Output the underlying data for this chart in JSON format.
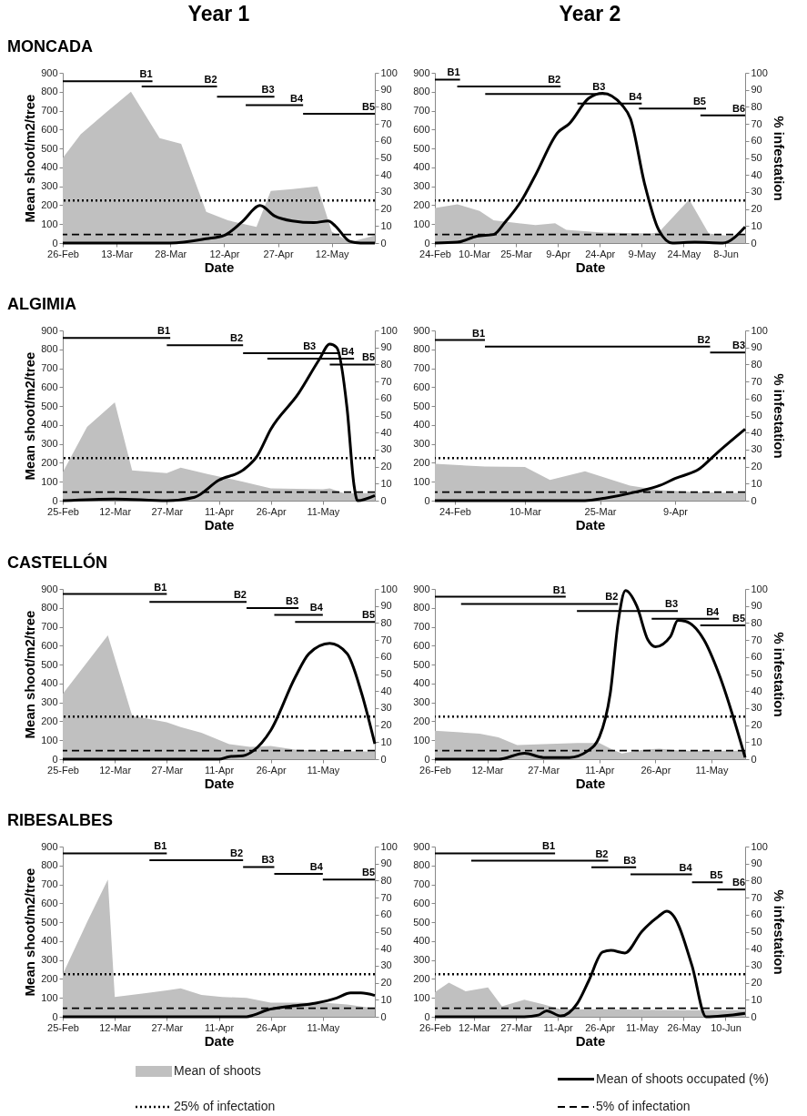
{
  "chart_data": [
    {
      "type": "area",
      "title": "MONCADA",
      "xlabel": "Date",
      "ylabel": "Mean shoot/m2/tree",
      "xlim": [
        "--02-26",
        "--05-24"
      ],
      "xticks": [
        {
          "value": "--02-26",
          "label": "26-Feb"
        },
        {
          "value": "--03-13",
          "label": "13-Mar"
        },
        {
          "value": "--03-28",
          "label": "28-Mar"
        },
        {
          "value": "--04-12",
          "label": "12-Apr"
        },
        {
          "value": "--04-27",
          "label": "27-Apr"
        },
        {
          "value": "--05-12",
          "label": "12-May"
        }
      ],
      "ylim": [
        0,
        900
      ],
      "yticks": [
        0,
        100,
        200,
        300,
        400,
        500,
        600,
        700,
        800,
        900
      ],
      "y2lim": [
        0,
        100
      ],
      "y2ticks": [
        0,
        10,
        20,
        30,
        40,
        50,
        60,
        70,
        80,
        90,
        100
      ],
      "series": [
        {
          "type": "area",
          "color": "#c0c0c0",
          "x": [
            "--02-26",
            "--03-03",
            "--03-10",
            "--03-17",
            "--03-25",
            "--03-31",
            "--04-07",
            "--04-13",
            "--04-21",
            "--04-25",
            "--05-01",
            "--05-08",
            "--05-12",
            "--05-17",
            "--05-24"
          ],
          "values": [
            450,
            575,
            690,
            800,
            555,
            525,
            165,
            120,
            85,
            275,
            285,
            300,
            60,
            5,
            40
          ]
        },
        {
          "type": "line",
          "axis": "y2",
          "color": "#000000",
          "x": [
            "--02-26",
            "--03-13",
            "--03-28",
            "--04-07",
            "--04-12",
            "--04-17",
            "--04-22",
            "--04-26",
            "--05-01",
            "--05-07",
            "--05-11",
            "--05-13",
            "--05-17",
            "--05-20",
            "--05-24"
          ],
          "values": [
            0,
            0,
            0,
            2.5,
            4.5,
            12.5,
            22,
            16,
            13,
            12,
            13,
            10,
            1,
            0,
            0
          ]
        },
        {
          "type": "line",
          "color": "#000000",
          "x": [
            "--02-26",
            "--03-23"
          ],
          "values": [
            855,
            855
          ]
        },
        {
          "type": "line",
          "color": "#000000",
          "x": [
            "--03-20",
            "--04-10"
          ],
          "values": [
            828,
            828
          ]
        },
        {
          "type": "line",
          "color": "#000000",
          "x": [
            "--04-10",
            "--04-26"
          ],
          "values": [
            774,
            774
          ]
        },
        {
          "type": "line",
          "color": "#000000",
          "x": [
            "--04-18",
            "--05-04"
          ],
          "values": [
            729,
            729
          ]
        },
        {
          "type": "line",
          "color": "#000000",
          "x": [
            "--05-04",
            "--05-24"
          ],
          "values": [
            684,
            684
          ]
        }
      ],
      "ref_lines": [
        {
          "axis": "y2",
          "value": 25,
          "line_style": "dotted",
          "color": "#000000"
        },
        {
          "axis": "y2",
          "value": 5,
          "line_style": "dashed",
          "color": "#000000"
        }
      ],
      "annotations": [
        "Year 1",
        {
          "text": "B1",
          "x": "--03-23",
          "y": 855
        },
        {
          "text": "B2",
          "x": "--04-10",
          "y": 828
        },
        {
          "text": "B3",
          "x": "--04-26",
          "y": 774
        },
        {
          "text": "B4",
          "x": "--05-04",
          "y": 729
        },
        {
          "text": "B5",
          "x": "--05-24",
          "y": 684
        }
      ]
    },
    {
      "type": "area",
      "xlabel": "Date",
      "y2label": "% infestation",
      "xlim": [
        "--02-24",
        "--06-15"
      ],
      "xticks": [
        {
          "value": "--02-24",
          "label": "24-Feb"
        },
        {
          "value": "--03-10",
          "label": "10-Mar"
        },
        {
          "value": "--03-25",
          "label": "25-Mar"
        },
        {
          "value": "--04-09",
          "label": "9-Apr"
        },
        {
          "value": "--04-24",
          "label": "24-Apr"
        },
        {
          "value": "--05-09",
          "label": "9-May"
        },
        {
          "value": "--05-24",
          "label": "24-May"
        },
        {
          "value": "--06-08",
          "label": "8-Jun"
        }
      ],
      "ylim": [
        0,
        900
      ],
      "yticks": [
        0,
        100,
        200,
        300,
        400,
        500,
        600,
        700,
        800,
        900
      ],
      "y2lim": [
        0,
        100
      ],
      "y2ticks": [
        0,
        10,
        20,
        30,
        40,
        50,
        60,
        70,
        80,
        90,
        100
      ],
      "series": [
        {
          "type": "area",
          "color": "#c0c0c0",
          "x": [
            "--02-24",
            "--03-04",
            "--03-12",
            "--03-17",
            "--03-26",
            "--04-01",
            "--04-08",
            "--04-12",
            "--04-25",
            "--05-12",
            "--05-15",
            "--05-26",
            "--06-02",
            "--06-08",
            "--06-15"
          ],
          "values": [
            185,
            205,
            170,
            120,
            105,
            95,
            105,
            70,
            55,
            50,
            55,
            230,
            50,
            40,
            40
          ]
        },
        {
          "type": "line",
          "axis": "y2",
          "color": "#000000",
          "x": [
            "--02-24",
            "--03-04",
            "--03-11",
            "--03-17",
            "--03-21",
            "--03-27",
            "--04-01",
            "--04-09",
            "--04-13",
            "--04-20",
            "--04-25",
            "--05-02",
            "--05-05",
            "--05-10",
            "--05-15",
            "--05-20",
            "--05-28",
            "--06-07",
            "--06-15"
          ],
          "values": [
            0,
            0.5,
            4,
            5,
            12,
            25,
            40,
            65,
            70,
            85,
            88,
            81,
            73,
            35,
            8,
            0,
            0.5,
            0,
            9.5
          ]
        },
        {
          "type": "line",
          "color": "#000000",
          "x": [
            "--02-24",
            "--03-05"
          ],
          "values": [
            864,
            864
          ]
        },
        {
          "type": "line",
          "color": "#000000",
          "x": [
            "--03-04",
            "--04-10"
          ],
          "values": [
            828,
            828
          ]
        },
        {
          "type": "line",
          "color": "#000000",
          "x": [
            "--03-14",
            "--04-26"
          ],
          "values": [
            788,
            788
          ]
        },
        {
          "type": "line",
          "color": "#000000",
          "x": [
            "--04-16",
            "--05-09"
          ],
          "values": [
            738,
            738
          ]
        },
        {
          "type": "line",
          "color": "#000000",
          "x": [
            "--05-08",
            "--06-01"
          ],
          "values": [
            711,
            711
          ]
        },
        {
          "type": "line",
          "color": "#000000",
          "x": [
            "--05-30",
            "--06-15"
          ],
          "values": [
            675,
            675
          ]
        }
      ],
      "ref_lines": [
        {
          "axis": "y2",
          "value": 25,
          "line_style": "dotted",
          "color": "#000000"
        },
        {
          "axis": "y2",
          "value": 5,
          "line_style": "dashed",
          "color": "#000000"
        }
      ],
      "annotations": [
        "Year 2",
        {
          "text": "B1",
          "x": "--03-05",
          "y": 864
        },
        {
          "text": "B2",
          "x": "--04-10",
          "y": 828
        },
        {
          "text": "B3",
          "x": "--04-26",
          "y": 788
        },
        {
          "text": "B4",
          "x": "--05-09",
          "y": 738
        },
        {
          "text": "B5",
          "x": "--06-01",
          "y": 711
        },
        {
          "text": "B6",
          "x": "--06-15",
          "y": 675
        }
      ]
    },
    {
      "type": "area",
      "title": "ALGIMIA",
      "xlabel": "Date",
      "ylabel": "Mean shoot/m2/tree",
      "xlim": [
        "--02-25",
        "--05-26"
      ],
      "xticks": [
        {
          "value": "--02-25",
          "label": "25-Feb"
        },
        {
          "value": "--03-12",
          "label": "12-Mar"
        },
        {
          "value": "--03-27",
          "label": "27-Mar"
        },
        {
          "value": "--04-11",
          "label": "11-Apr"
        },
        {
          "value": "--04-26",
          "label": "26-Apr"
        },
        {
          "value": "--05-11",
          "label": "11-May"
        }
      ],
      "ylim": [
        0,
        900
      ],
      "yticks": [
        0,
        100,
        200,
        300,
        400,
        500,
        600,
        700,
        800,
        900
      ],
      "y2lim": [
        0,
        100
      ],
      "y2ticks": [
        0,
        10,
        20,
        30,
        40,
        50,
        60,
        70,
        80,
        90,
        100
      ],
      "series": [
        {
          "type": "area",
          "color": "#c0c0c0",
          "x": [
            "--02-25",
            "--03-04",
            "--03-12",
            "--03-17",
            "--03-27",
            "--03-31",
            "--04-08",
            "--04-18",
            "--04-26",
            "--05-11",
            "--05-13",
            "--05-17",
            "--05-26"
          ],
          "values": [
            150,
            390,
            520,
            160,
            145,
            175,
            140,
            100,
            65,
            60,
            65,
            40,
            40
          ]
        },
        {
          "type": "line",
          "axis": "y2",
          "color": "#000000",
          "x": [
            "--02-25",
            "--03-12",
            "--03-27",
            "--04-04",
            "--04-11",
            "--04-18",
            "--04-22",
            "--04-26",
            "--05-04",
            "--05-10",
            "--05-13",
            "--05-15",
            "--05-18",
            "--05-20",
            "--05-21",
            "--05-26"
          ],
          "values": [
            0,
            1,
            0,
            2,
            12,
            18,
            26,
            42,
            63,
            83,
            92,
            90,
            54,
            9,
            0,
            3
          ]
        },
        {
          "type": "line",
          "color": "#000000",
          "x": [
            "--02-25",
            "--03-28"
          ],
          "values": [
            860,
            860
          ]
        },
        {
          "type": "line",
          "color": "#000000",
          "x": [
            "--03-27",
            "--04-18"
          ],
          "values": [
            822,
            822
          ]
        },
        {
          "type": "line",
          "color": "#000000",
          "x": [
            "--04-18",
            "--05-16"
          ],
          "values": [
            780,
            780
          ]
        },
        {
          "type": "line",
          "color": "#000000",
          "x": [
            "--04-25",
            "--05-20"
          ],
          "values": [
            751,
            751
          ]
        },
        {
          "type": "line",
          "color": "#000000",
          "x": [
            "--05-13",
            "--05-26"
          ],
          "values": [
            720,
            720
          ]
        }
      ],
      "ref_lines": [
        {
          "axis": "y2",
          "value": 25,
          "line_style": "dotted",
          "color": "#000000"
        },
        {
          "axis": "y2",
          "value": 5,
          "line_style": "dashed",
          "color": "#000000"
        }
      ],
      "annotations": [
        {
          "text": "B1",
          "x": "--03-28",
          "y": 860
        },
        {
          "text": "B2",
          "x": "--04-18",
          "y": 822
        },
        {
          "text": "B3",
          "x": "--05-09",
          "y": 780
        },
        {
          "text": "B4",
          "x": "--05-20",
          "y": 751
        },
        {
          "text": "B5",
          "x": "--05-26",
          "y": 720
        }
      ]
    },
    {
      "type": "area",
      "xlabel": "Date",
      "y2label": "% infestation",
      "xlim": [
        "--02-20",
        "--04-23"
      ],
      "xticks": [
        {
          "value": "--02-24",
          "label": "24-Feb"
        },
        {
          "value": "--03-10",
          "label": "10-Mar"
        },
        {
          "value": "--03-25",
          "label": "25-Mar"
        },
        {
          "value": "--04-09",
          "label": "9-Apr"
        }
      ],
      "ylim": [
        0,
        900
      ],
      "yticks": [
        0,
        100,
        200,
        300,
        400,
        500,
        600,
        700,
        800,
        900
      ],
      "y2lim": [
        0,
        100
      ],
      "y2ticks": [
        0,
        10,
        20,
        30,
        40,
        50,
        60,
        70,
        80,
        90,
        100
      ],
      "series": [
        {
          "type": "area",
          "color": "#c0c0c0",
          "x": [
            "--02-20",
            "--03-02",
            "--03-10",
            "--03-15",
            "--03-22",
            "--03-31",
            "--04-06",
            "--04-14",
            "--04-23"
          ],
          "values": [
            195,
            180,
            178,
            110,
            155,
            80,
            55,
            45,
            40
          ]
        },
        {
          "type": "line",
          "axis": "y2",
          "color": "#000000",
          "x": [
            "--02-20",
            "--03-10",
            "--03-22",
            "--03-26",
            "--04-01",
            "--04-06",
            "--04-09",
            "--04-14",
            "--04-17",
            "--04-23"
          ],
          "values": [
            0,
            0,
            0,
            1.5,
            5,
            9,
            13,
            19,
            27,
            42
          ]
        },
        {
          "type": "line",
          "color": "#000000",
          "x": [
            "--02-20",
            "--03-02"
          ],
          "values": [
            849,
            849
          ]
        },
        {
          "type": "line",
          "color": "#000000",
          "x": [
            "--03-02",
            "--04-16"
          ],
          "values": [
            814,
            814
          ]
        },
        {
          "type": "line",
          "color": "#000000",
          "x": [
            "--04-16",
            "--04-23"
          ],
          "values": [
            783,
            783
          ]
        }
      ],
      "ref_lines": [
        {
          "axis": "y2",
          "value": 25,
          "line_style": "dotted",
          "color": "#000000"
        },
        {
          "axis": "y2",
          "value": 5,
          "line_style": "dashed",
          "color": "#000000"
        }
      ],
      "annotations": [
        {
          "text": "B1",
          "x": "--03-02",
          "y": 849
        },
        {
          "text": "B2",
          "x": "--04-16",
          "y": 814
        },
        {
          "text": "B3",
          "x": "--04-23",
          "y": 783
        }
      ]
    },
    {
      "type": "area",
      "title": "CASTELLÓN",
      "xlabel": "Date",
      "ylabel": "Mean shoot/m2/tree",
      "xlim": [
        "--02-25",
        "--05-26"
      ],
      "xticks": [
        {
          "value": "--02-25",
          "label": "25-Feb"
        },
        {
          "value": "--03-12",
          "label": "12-Mar"
        },
        {
          "value": "--03-27",
          "label": "27-Mar"
        },
        {
          "value": "--04-11",
          "label": "11-Apr"
        },
        {
          "value": "--04-26",
          "label": "26-Apr"
        },
        {
          "value": "--05-11",
          "label": "11-May"
        }
      ],
      "ylim": [
        0,
        900
      ],
      "yticks": [
        0,
        100,
        200,
        300,
        400,
        500,
        600,
        700,
        800,
        900
      ],
      "y2lim": [
        0,
        100
      ],
      "y2ticks": [
        0,
        10,
        20,
        30,
        40,
        50,
        60,
        70,
        80,
        90,
        100
      ],
      "series": [
        {
          "type": "area",
          "color": "#c0c0c0",
          "x": [
            "--02-25",
            "--03-10",
            "--03-17",
            "--03-27",
            "--03-31",
            "--04-06",
            "--04-14",
            "--04-20",
            "--04-26",
            "--05-03",
            "--05-11",
            "--05-26"
          ],
          "values": [
            345,
            655,
            230,
            195,
            170,
            140,
            80,
            65,
            70,
            50,
            45,
            40
          ]
        },
        {
          "type": "line",
          "axis": "y2",
          "color": "#000000",
          "x": [
            "--02-25",
            "--03-27",
            "--04-11",
            "--04-14",
            "--04-18",
            "--04-21",
            "--04-26",
            "--05-03",
            "--05-07",
            "--05-13",
            "--05-18",
            "--05-22",
            "--05-26"
          ],
          "values": [
            0,
            0,
            0,
            1.5,
            2,
            5,
            17,
            48,
            62,
            68,
            62,
            40,
            9
          ]
        },
        {
          "type": "line",
          "color": "#000000",
          "x": [
            "--02-25",
            "--03-27"
          ],
          "values": [
            873,
            873
          ]
        },
        {
          "type": "line",
          "color": "#000000",
          "x": [
            "--03-22",
            "--04-19"
          ],
          "values": [
            832,
            832
          ]
        },
        {
          "type": "line",
          "color": "#000000",
          "x": [
            "--04-19",
            "--05-04"
          ],
          "values": [
            799,
            799
          ]
        },
        {
          "type": "line",
          "color": "#000000",
          "x": [
            "--04-27",
            "--05-11"
          ],
          "values": [
            763,
            763
          ]
        },
        {
          "type": "line",
          "color": "#000000",
          "x": [
            "--05-03",
            "--05-26"
          ],
          "values": [
            725,
            725
          ]
        }
      ],
      "ref_lines": [
        {
          "axis": "y2",
          "value": 25,
          "line_style": "dotted",
          "color": "#000000"
        },
        {
          "axis": "y2",
          "value": 5,
          "line_style": "dashed",
          "color": "#000000"
        }
      ],
      "annotations": [
        {
          "text": "B1",
          "x": "--03-27",
          "y": 873
        },
        {
          "text": "B2",
          "x": "--04-19",
          "y": 832
        },
        {
          "text": "B3",
          "x": "--05-04",
          "y": 799
        },
        {
          "text": "B4",
          "x": "--05-11",
          "y": 763
        },
        {
          "text": "B5",
          "x": "--05-26",
          "y": 725
        }
      ]
    },
    {
      "type": "area",
      "xlabel": "Date",
      "y2label": "% infestation",
      "xlim": [
        "--02-26",
        "--05-20"
      ],
      "xticks": [
        {
          "value": "--02-26",
          "label": "26-Feb"
        },
        {
          "value": "--03-12",
          "label": "12-Mar"
        },
        {
          "value": "--03-27",
          "label": "27-Mar"
        },
        {
          "value": "--04-11",
          "label": "11-Apr"
        },
        {
          "value": "--04-26",
          "label": "26-Apr"
        },
        {
          "value": "--05-11",
          "label": "11-May"
        }
      ],
      "ylim": [
        0,
        900
      ],
      "yticks": [
        0,
        100,
        200,
        300,
        400,
        500,
        600,
        700,
        800,
        900
      ],
      "y2lim": [
        0,
        100
      ],
      "y2ticks": [
        0,
        10,
        20,
        30,
        40,
        50,
        60,
        70,
        80,
        90,
        100
      ],
      "series": [
        {
          "type": "area",
          "color": "#c0c0c0",
          "x": [
            "--02-26",
            "--03-10",
            "--03-15",
            "--03-20",
            "--03-27",
            "--04-05",
            "--04-11",
            "--04-14",
            "--04-17",
            "--04-23",
            "--04-27",
            "--05-03",
            "--05-20"
          ],
          "values": [
            150,
            135,
            115,
            75,
            80,
            85,
            85,
            55,
            30,
            50,
            55,
            45,
            45
          ]
        },
        {
          "type": "line",
          "axis": "y2",
          "color": "#000000",
          "x": [
            "--02-26",
            "--03-15",
            "--03-22",
            "--03-27",
            "--04-03",
            "--04-08",
            "--04-11",
            "--04-14",
            "--04-16",
            "--04-18",
            "--04-21",
            "--04-24",
            "--04-26",
            "--04-30",
            "--05-02",
            "--05-04",
            "--05-09",
            "--05-13",
            "--05-20"
          ],
          "values": [
            0,
            0,
            3.5,
            1,
            1,
            5,
            13,
            40,
            80,
            99,
            90,
            70,
            66,
            72,
            81.5,
            81,
            70,
            50,
            1
          ]
        },
        {
          "type": "line",
          "color": "#000000",
          "x": [
            "--02-26",
            "--04-02"
          ],
          "values": [
            859,
            859
          ]
        },
        {
          "type": "line",
          "color": "#000000",
          "x": [
            "--03-05",
            "--04-16"
          ],
          "values": [
            821,
            821
          ]
        },
        {
          "type": "line",
          "color": "#000000",
          "x": [
            "--04-05",
            "--05-02"
          ],
          "values": [
            783,
            783
          ]
        },
        {
          "type": "line",
          "color": "#000000",
          "x": [
            "--04-25",
            "--05-13"
          ],
          "values": [
            742,
            742
          ]
        },
        {
          "type": "line",
          "color": "#000000",
          "x": [
            "--05-08",
            "--05-20"
          ],
          "values": [
            708,
            708
          ]
        }
      ],
      "ref_lines": [
        {
          "axis": "y2",
          "value": 25,
          "line_style": "dotted",
          "color": "#000000"
        },
        {
          "axis": "y2",
          "value": 5,
          "line_style": "dashed",
          "color": "#000000"
        }
      ],
      "annotations": [
        {
          "text": "B1",
          "x": "--04-02",
          "y": 859
        },
        {
          "text": "B2",
          "x": "--04-16",
          "y": 821
        },
        {
          "text": "B3",
          "x": "--05-02",
          "y": 783
        },
        {
          "text": "B4",
          "x": "--05-13",
          "y": 742
        },
        {
          "text": "B5",
          "x": "--05-20",
          "y": 708
        }
      ]
    },
    {
      "type": "area",
      "title": "RIBESALBES",
      "xlabel": "Date",
      "ylabel": "Mean shoot/m2/tree",
      "xlim": [
        "--02-25",
        "--05-26"
      ],
      "xticks": [
        {
          "value": "--02-25",
          "label": "25-Feb"
        },
        {
          "value": "--03-12",
          "label": "12-Mar"
        },
        {
          "value": "--03-27",
          "label": "27-Mar"
        },
        {
          "value": "--04-11",
          "label": "11-Apr"
        },
        {
          "value": "--04-26",
          "label": "26-Apr"
        },
        {
          "value": "--05-11",
          "label": "11-May"
        }
      ],
      "ylim": [
        0,
        900
      ],
      "yticks": [
        0,
        100,
        200,
        300,
        400,
        500,
        600,
        700,
        800,
        900
      ],
      "y2lim": [
        0,
        100
      ],
      "y2ticks": [
        0,
        10,
        20,
        30,
        40,
        50,
        60,
        70,
        80,
        90,
        100
      ],
      "series": [
        {
          "type": "area",
          "color": "#c0c0c0",
          "x": [
            "--02-25",
            "--03-04",
            "--03-10",
            "--03-12",
            "--03-21",
            "--03-27",
            "--03-31",
            "--04-06",
            "--04-12",
            "--04-19",
            "--04-26",
            "--05-04",
            "--05-11",
            "--05-18",
            "--05-26"
          ],
          "values": [
            225,
            500,
            725,
            105,
            125,
            140,
            150,
            115,
            105,
            100,
            75,
            75,
            75,
            65,
            45
          ]
        },
        {
          "type": "line",
          "axis": "y2",
          "color": "#000000",
          "x": [
            "--02-25",
            "--03-27",
            "--04-19",
            "--04-21",
            "--04-25",
            "--05-01",
            "--05-09",
            "--05-15",
            "--05-19",
            "--05-22",
            "--05-26"
          ],
          "values": [
            0,
            0,
            0,
            1,
            4,
            6,
            8,
            11,
            14,
            14,
            12.5
          ]
        },
        {
          "type": "line",
          "color": "#000000",
          "x": [
            "--02-25",
            "--03-27"
          ],
          "values": [
            864,
            864
          ]
        },
        {
          "type": "line",
          "color": "#000000",
          "x": [
            "--03-22",
            "--04-18"
          ],
          "values": [
            828,
            828
          ]
        },
        {
          "type": "line",
          "color": "#000000",
          "x": [
            "--04-18",
            "--04-27"
          ],
          "values": [
            792,
            792
          ]
        },
        {
          "type": "line",
          "color": "#000000",
          "x": [
            "--04-27",
            "--05-11"
          ],
          "values": [
            756,
            756
          ]
        },
        {
          "type": "line",
          "color": "#000000",
          "x": [
            "--05-11",
            "--05-26"
          ],
          "values": [
            726,
            726
          ]
        }
      ],
      "ref_lines": [
        {
          "axis": "y2",
          "value": 25,
          "line_style": "dotted",
          "color": "#000000"
        },
        {
          "axis": "y2",
          "value": 5,
          "line_style": "dashed",
          "color": "#000000"
        }
      ],
      "annotations": [
        {
          "text": "B1",
          "x": "--03-27",
          "y": 864
        },
        {
          "text": "B2",
          "x": "--04-18",
          "y": 828
        },
        {
          "text": "B3",
          "x": "--04-27",
          "y": 792
        },
        {
          "text": "B4",
          "x": "--05-11",
          "y": 756
        },
        {
          "text": "B5",
          "x": "--05-26",
          "y": 726
        }
      ]
    },
    {
      "type": "area",
      "xlabel": "Date",
      "y2label": "% infestation",
      "legend": "bottom",
      "xlim": [
        "--02-26",
        "--06-17"
      ],
      "xticks": [
        {
          "value": "--02-26",
          "label": "26-Feb"
        },
        {
          "value": "--03-12",
          "label": "12-Mar"
        },
        {
          "value": "--03-27",
          "label": "27-Mar"
        },
        {
          "value": "--04-11",
          "label": "11-Apr"
        },
        {
          "value": "--04-26",
          "label": "26-Apr"
        },
        {
          "value": "--05-11",
          "label": "11-May"
        },
        {
          "value": "--05-26",
          "label": "26-May"
        },
        {
          "value": "--06-10",
          "label": "10-Jun"
        }
      ],
      "ylim": [
        0,
        900
      ],
      "yticks": [
        0,
        100,
        200,
        300,
        400,
        500,
        600,
        700,
        800,
        900
      ],
      "y2lim": [
        0,
        100
      ],
      "y2ticks": [
        0,
        10,
        20,
        30,
        40,
        50,
        60,
        70,
        80,
        90,
        100
      ],
      "series": [
        {
          "type": "area",
          "name": "Mean of shoots",
          "color": "#c0c0c0",
          "x": [
            "--02-26",
            "--03-03",
            "--03-09",
            "--03-17",
            "--03-22",
            "--03-30",
            "--04-06",
            "--04-12",
            "--04-26",
            "--05-26",
            "--06-17"
          ],
          "values": [
            130,
            180,
            135,
            155,
            55,
            90,
            65,
            40,
            40,
            35,
            35
          ]
        },
        {
          "type": "line",
          "axis": "y2",
          "name": "Mean of shoots occupated (%)",
          "color": "#000000",
          "x": [
            "--02-26",
            "--03-30",
            "--04-04",
            "--04-07",
            "--04-12",
            "--04-18",
            "--04-22",
            "--04-27",
            "--04-30",
            "--05-05",
            "--05-11",
            "--05-17",
            "--05-20",
            "--05-22",
            "--05-29",
            "--06-03",
            "--06-17"
          ],
          "values": [
            0,
            0,
            1,
            3.5,
            0.5,
            8,
            21,
            38,
            39,
            37.5,
            50,
            59,
            62,
            60,
            30,
            0,
            2
          ]
        },
        {
          "type": "line",
          "color": "#000000",
          "x": [
            "--02-26",
            "--04-10"
          ],
          "values": [
            864,
            864
          ]
        },
        {
          "type": "line",
          "color": "#000000",
          "x": [
            "--03-11",
            "--04-29"
          ],
          "values": [
            825,
            825
          ]
        },
        {
          "type": "line",
          "color": "#000000",
          "x": [
            "--04-23",
            "--05-09"
          ],
          "values": [
            790,
            790
          ]
        },
        {
          "type": "line",
          "color": "#000000",
          "x": [
            "--05-07",
            "--05-29"
          ],
          "values": [
            753,
            753
          ]
        },
        {
          "type": "line",
          "color": "#000000",
          "x": [
            "--05-29",
            "--06-09"
          ],
          "values": [
            711,
            711
          ]
        },
        {
          "type": "line",
          "color": "#000000",
          "x": [
            "--06-07",
            "--06-17"
          ],
          "values": [
            673,
            673
          ]
        }
      ],
      "ref_lines": [
        {
          "axis": "y2",
          "value": 25,
          "line_style": "dotted",
          "color": "#000000",
          "label": "25% of infectation"
        },
        {
          "axis": "y2",
          "value": 5,
          "line_style": "dashed",
          "color": "#000000",
          "label": "5% of infectation"
        }
      ],
      "annotations": [
        {
          "text": "B1",
          "x": "--04-10",
          "y": 864
        },
        {
          "text": "B2",
          "x": "--04-29",
          "y": 825
        },
        {
          "text": "B3",
          "x": "--05-09",
          "y": 790
        },
        {
          "text": "B4",
          "x": "--05-29",
          "y": 753
        },
        {
          "text": "B5",
          "x": "--06-09",
          "y": 711
        },
        {
          "text": "B6",
          "x": "--06-17",
          "y": 673
        }
      ]
    }
  ]
}
